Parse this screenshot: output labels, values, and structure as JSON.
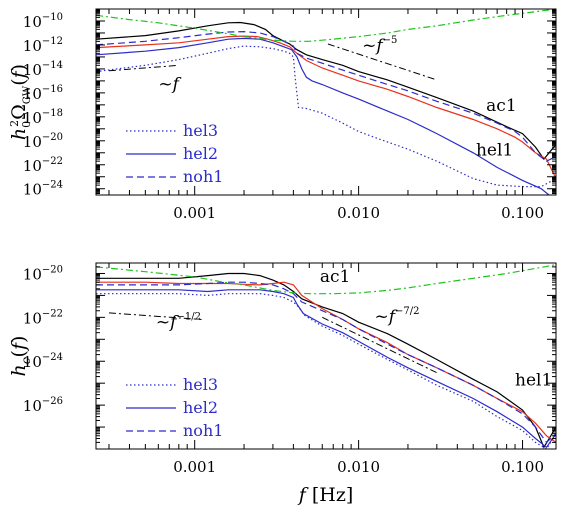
{
  "chart_data": [
    {
      "type": "line",
      "xscale": "log",
      "yscale": "log",
      "xlim": [
        0.00025,
        0.16
      ],
      "ylim": [
        3e-25,
        1e-09
      ],
      "ylabel": "h_0^2 Ω_GW(f)",
      "xlabel": "",
      "xticks": [
        {
          "value": 0.001,
          "label": "0.001"
        },
        {
          "value": 0.01,
          "label": "0.010"
        },
        {
          "value": 0.1,
          "label": "0.100"
        }
      ],
      "yticks": [
        {
          "value": 1e-10,
          "base": "10",
          "exp": "−10"
        },
        {
          "value": 1e-12,
          "base": "10",
          "exp": "−12"
        },
        {
          "value": 1e-14,
          "base": "10",
          "exp": "−14"
        },
        {
          "value": 1e-16,
          "base": "10",
          "exp": "−16"
        },
        {
          "value": 1e-18,
          "base": "10",
          "exp": "−18"
        },
        {
          "value": 1e-20,
          "base": "10",
          "exp": "−20"
        },
        {
          "value": 1e-22,
          "base": "10",
          "exp": "−22"
        },
        {
          "value": 1e-24,
          "base": "10",
          "exp": "−24"
        }
      ],
      "series": [
        {
          "name": "ac1",
          "color": "#000000",
          "dash": "solid",
          "x": [
            0.00025,
            0.0005,
            0.0008,
            0.0012,
            0.0016,
            0.0019,
            0.0023,
            0.0027,
            0.003,
            0.0034,
            0.0038,
            0.0042,
            0.0048,
            0.006,
            0.008,
            0.01,
            0.015,
            0.02,
            0.03,
            0.05,
            0.08,
            0.1,
            0.12,
            0.135,
            0.16
          ],
          "y": [
            3e-12,
            6e-12,
            1.5e-11,
            4e-11,
            7e-11,
            7.5e-11,
            5e-11,
            2e-11,
            6e-12,
            2.5e-12,
            1.2e-12,
            4e-13,
            1.5e-13,
            6e-14,
            2e-14,
            6e-15,
            1.2e-15,
            3e-16,
            4e-17,
            3e-18,
            1.5e-19,
            4e-20,
            3e-21,
            3e-22,
            5e-21
          ]
        },
        {
          "name": "hel1",
          "color": "#e8321e",
          "dash": "solid",
          "x": [
            0.00025,
            0.0005,
            0.0008,
            0.0012,
            0.0016,
            0.002,
            0.0024,
            0.0028,
            0.0033,
            0.0038,
            0.0042,
            0.0048,
            0.006,
            0.008,
            0.01,
            0.015,
            0.02,
            0.03,
            0.05,
            0.07,
            0.09,
            0.1,
            0.12,
            0.14,
            0.16
          ],
          "y": [
            6e-13,
            1e-12,
            1.5e-12,
            3e-12,
            5e-12,
            5.5e-12,
            5e-12,
            3e-12,
            1.5e-12,
            7e-13,
            2e-13,
            5e-14,
            1.2e-14,
            3e-15,
            1e-15,
            2e-16,
            5e-17,
            6e-18,
            6e-19,
            1e-19,
            2e-20,
            8e-21,
            1e-21,
            3e-22,
            7e-24
          ]
        },
        {
          "name": "noh1",
          "color": "#2c2ccc",
          "dash": "dashed",
          "x": [
            0.00025,
            0.0005,
            0.0008,
            0.0012,
            0.0016,
            0.002,
            0.0025,
            0.003,
            0.0035,
            0.004,
            0.0042,
            0.0048,
            0.006,
            0.008,
            0.01,
            0.015,
            0.02,
            0.03,
            0.05,
            0.07,
            0.09,
            0.1,
            0.12,
            0.14,
            0.16
          ],
          "y": [
            1e-12,
            2e-12,
            4e-12,
            8e-12,
            1.2e-11,
            1.3e-11,
            1e-11,
            5e-12,
            2e-12,
            8e-13,
            2e-13,
            8e-14,
            3e-14,
            8e-15,
            3e-15,
            5e-16,
            1.5e-16,
            2e-17,
            2e-18,
            3e-19,
            6e-20,
            2e-20,
            1e-21,
            2e-22,
            5e-22
          ]
        },
        {
          "name": "hel2",
          "color": "#2c2ccc",
          "dash": "solid",
          "x": [
            0.00025,
            0.0005,
            0.0008,
            0.0012,
            0.0016,
            0.002,
            0.0025,
            0.003,
            0.0035,
            0.0039,
            0.0042,
            0.0045,
            0.0048,
            0.0052,
            0.006,
            0.008,
            0.01,
            0.015,
            0.02,
            0.03,
            0.05,
            0.07,
            0.1,
            0.13,
            0.16
          ],
          "y": [
            1.5e-13,
            3e-13,
            6e-13,
            1.5e-12,
            3e-12,
            3.5e-12,
            3e-12,
            1.5e-12,
            7e-13,
            4e-13,
            1e-13,
            1e-14,
            2e-15,
            1e-15,
            5e-16,
            1e-16,
            3e-17,
            3e-18,
            6e-19,
            4e-20,
            1e-21,
            6e-23,
            5e-24,
            1e-24,
            1e-25
          ]
        },
        {
          "name": "hel3",
          "color": "#2c2ccc",
          "dash": "dotted",
          "x": [
            0.00025,
            0.0005,
            0.0008,
            0.0012,
            0.0016,
            0.002,
            0.0025,
            0.003,
            0.0035,
            0.0038,
            0.004,
            0.0041,
            0.0043,
            0.0048,
            0.006,
            0.008,
            0.01,
            0.015,
            0.02,
            0.03,
            0.05,
            0.07,
            0.1,
            0.13,
            0.16
          ],
          "y": [
            6e-15,
            2e-14,
            6e-14,
            2e-13,
            5e-13,
            8e-13,
            7e-13,
            5e-13,
            3e-13,
            2e-13,
            1e-13,
            2e-15,
            6e-18,
            5e-18,
            2e-18,
            3e-19,
            6e-20,
            8e-21,
            2e-21,
            2e-22,
            7e-24,
            2e-24,
            1.5e-24,
            1.5e-24,
            7e-24
          ]
        },
        {
          "name": "sensitivity",
          "color": "#1fc41f",
          "dash": "dashdot",
          "x": [
            0.00025,
            0.0004,
            0.0006,
            0.001,
            0.0015,
            0.002,
            0.003,
            0.004,
            0.005,
            0.007,
            0.01,
            0.015,
            0.02,
            0.03,
            0.05,
            0.08,
            0.12,
            0.16
          ],
          "y": [
            3e-10,
            1.3e-10,
            7e-11,
            2.5e-11,
            1e-11,
            5e-12,
            2.5e-12,
            2e-12,
            2e-12,
            3e-12,
            5e-12,
            1e-11,
            2e-11,
            4e-11,
            1.2e-10,
            3e-10,
            6e-10,
            1e-09
          ]
        }
      ],
      "guides": [
        {
          "name": "guide-f-minus-5",
          "x": [
            0.0065,
            0.03
          ],
          "y": [
            1.2e-12,
            1.2e-15
          ]
        },
        {
          "name": "guide-f",
          "x": [
            0.0003,
            0.0008
          ],
          "y": [
            7e-15,
            2e-14
          ]
        }
      ],
      "annotations": [
        {
          "name": "label-ac1",
          "text": "ac1",
          "color": "#000000",
          "x": 0.06,
          "y": 3e-18
        },
        {
          "name": "label-hel1",
          "text": "hel1",
          "color": "#e8321e",
          "x": 0.052,
          "y": 6e-22
        },
        {
          "name": "label-f-minus-5",
          "base": "~f",
          "exp": "−5",
          "x": 0.0105,
          "y": 3e-13
        },
        {
          "name": "label-f",
          "base": "~f",
          "exp": "",
          "x": 0.0006,
          "y": 2e-16
        }
      ],
      "legend": {
        "placement": "bottom-left",
        "entries": [
          {
            "text": "hel3",
            "dash": "dotted"
          },
          {
            "text": "hel2",
            "dash": "solid"
          },
          {
            "text": "noh1",
            "dash": "dashed"
          }
        ]
      }
    },
    {
      "type": "line",
      "xscale": "log",
      "yscale": "log",
      "xlim": [
        0.00025,
        0.16
      ],
      "ylim": [
        1e-28,
        3e-20
      ],
      "ylabel": "h_c(f)",
      "xlabel": "f [Hz]",
      "xticks": [
        {
          "value": 0.001,
          "label": "0.001"
        },
        {
          "value": 0.01,
          "label": "0.010"
        },
        {
          "value": 0.1,
          "label": "0.100"
        }
      ],
      "yticks": [
        {
          "value": 1e-20,
          "base": "10",
          "exp": "−20"
        },
        {
          "value": 1e-22,
          "base": "10",
          "exp": "−22"
        },
        {
          "value": 1e-24,
          "base": "10",
          "exp": "−24"
        },
        {
          "value": 1e-26,
          "base": "10",
          "exp": "−26"
        }
      ],
      "series": [
        {
          "name": "ac1",
          "color": "#000000",
          "dash": "solid",
          "x": [
            0.00025,
            0.0005,
            0.0008,
            0.0012,
            0.0016,
            0.002,
            0.0025,
            0.003,
            0.0035,
            0.004,
            0.0045,
            0.006,
            0.008,
            0.01,
            0.015,
            0.02,
            0.03,
            0.05,
            0.07,
            0.1,
            0.12,
            0.135,
            0.16
          ],
          "y": [
            6e-21,
            6e-21,
            6e-21,
            8e-21,
            1e-20,
            1e-20,
            8e-21,
            5e-21,
            3e-21,
            1.5e-21,
            7e-22,
            3e-22,
            1.5e-22,
            6e-23,
            1.8e-23,
            6e-24,
            1.2e-24,
            1.5e-25,
            4e-26,
            6e-27,
            1e-27,
            1.2e-28,
            1e-27
          ]
        },
        {
          "name": "hel1",
          "color": "#e8321e",
          "dash": "solid",
          "x": [
            0.00025,
            0.0005,
            0.0008,
            0.0012,
            0.0016,
            0.002,
            0.0025,
            0.003,
            0.0035,
            0.004,
            0.0045,
            0.006,
            0.008,
            0.01,
            0.015,
            0.02,
            0.03,
            0.05,
            0.07,
            0.1,
            0.12,
            0.14,
            0.16
          ],
          "y": [
            4e-21,
            4e-21,
            3.5e-21,
            3.5e-21,
            3.5e-21,
            3.2e-21,
            3e-21,
            3.5e-21,
            4e-21,
            3e-21,
            1e-21,
            2.5e-22,
            8e-23,
            3e-23,
            7e-24,
            2e-24,
            5e-25,
            8e-26,
            2e-26,
            5e-27,
            1.5e-27,
            4e-28,
            2e-28
          ]
        },
        {
          "name": "noh1",
          "color": "#2c2ccc",
          "dash": "dashed",
          "x": [
            0.00025,
            0.0005,
            0.0008,
            0.0012,
            0.0016,
            0.002,
            0.0025,
            0.003,
            0.0035,
            0.004,
            0.0045,
            0.006,
            0.008,
            0.01,
            0.015,
            0.02,
            0.03,
            0.05,
            0.07,
            0.1,
            0.12,
            0.14,
            0.16
          ],
          "y": [
            3e-21,
            3e-21,
            3e-21,
            3.5e-21,
            4e-21,
            4e-21,
            3.5e-21,
            3e-21,
            2e-21,
            1.2e-21,
            5e-22,
            2e-22,
            8e-23,
            3e-23,
            6e-24,
            2e-24,
            5e-25,
            8e-26,
            2e-26,
            4e-27,
            1e-27,
            2e-28,
            5e-28
          ]
        },
        {
          "name": "hel2",
          "color": "#2c2ccc",
          "dash": "solid",
          "x": [
            0.00025,
            0.0005,
            0.0008,
            0.0012,
            0.0016,
            0.002,
            0.0025,
            0.003,
            0.0035,
            0.004,
            0.0042,
            0.0046,
            0.006,
            0.008,
            0.01,
            0.015,
            0.02,
            0.03,
            0.05,
            0.07,
            0.1,
            0.12,
            0.14,
            0.16
          ],
          "y": [
            1.8e-21,
            1.8e-21,
            1.8e-21,
            1.5e-21,
            1.8e-21,
            1.8e-21,
            1.8e-21,
            1.5e-21,
            1.2e-21,
            8e-22,
            4e-22,
            1.5e-22,
            5e-23,
            2e-23,
            8e-24,
            1.5e-24,
            5e-25,
            1.2e-25,
            2e-26,
            5e-27,
            1e-27,
            3e-28,
            1.2e-28,
            5e-28
          ]
        },
        {
          "name": "hel3",
          "color": "#2c2ccc",
          "dash": "dotted",
          "x": [
            0.00025,
            0.0005,
            0.0008,
            0.0012,
            0.0016,
            0.002,
            0.0025,
            0.003,
            0.0035,
            0.004,
            0.0043,
            0.0047,
            0.006,
            0.008,
            0.01,
            0.015,
            0.02,
            0.03,
            0.05,
            0.07,
            0.1,
            0.12,
            0.14,
            0.16
          ],
          "y": [
            1.2e-21,
            1.2e-21,
            1.2e-21,
            1e-21,
            1.2e-21,
            1.2e-21,
            1.2e-21,
            1e-21,
            8e-22,
            5e-22,
            3e-22,
            1.2e-22,
            4e-23,
            1.5e-23,
            6e-24,
            1.2e-24,
            4e-25,
            8e-26,
            1.5e-26,
            3e-27,
            7e-28,
            2e-28,
            1e-28,
            5e-28
          ]
        },
        {
          "name": "sensitivity",
          "color": "#1fc41f",
          "dash": "dashdot",
          "x": [
            0.00025,
            0.0005,
            0.001,
            0.0015,
            0.002,
            0.003,
            0.004,
            0.005,
            0.007,
            0.01,
            0.015,
            0.02,
            0.03,
            0.05,
            0.08,
            0.12,
            0.16
          ],
          "y": [
            2e-20,
            1.2e-20,
            7e-21,
            4e-21,
            3e-21,
            1.7e-21,
            1.3e-21,
            1.2e-21,
            1.2e-21,
            1.3e-21,
            1.7e-21,
            2.2e-21,
            3.5e-21,
            6e-21,
            1e-20,
            1.7e-20,
            2.5e-20
          ]
        }
      ],
      "guides": [
        {
          "name": "guide-f-minus-7-2",
          "x": [
            0.006,
            0.03
          ],
          "y": [
            1e-22,
            3e-25
          ]
        },
        {
          "name": "guide-f-minus-1-2",
          "x": [
            0.0003,
            0.0011
          ],
          "y": [
            1.6e-22,
            8e-23
          ]
        }
      ],
      "annotations": [
        {
          "name": "label-ac1",
          "text": "ac1",
          "color": "#000000",
          "x": 0.0058,
          "y": 4e-21
        },
        {
          "name": "label-hel1",
          "text": "hel1",
          "color": "#e8321e",
          "x": 0.09,
          "y": 8e-26
        },
        {
          "name": "label-f-minus-7-2",
          "base": "~f",
          "exp": "−7/2",
          "x": 0.0125,
          "y": 6e-23
        },
        {
          "name": "label-f-minus-1-2",
          "base": "~f",
          "exp": "−1/2",
          "x": 0.00058,
          "y": 3.5e-23
        }
      ],
      "legend": {
        "placement": "bottom-left",
        "entries": [
          {
            "text": "hel3",
            "dash": "dotted"
          },
          {
            "text": "hel2",
            "dash": "solid"
          },
          {
            "text": "noh1",
            "dash": "dashed"
          }
        ]
      }
    }
  ]
}
